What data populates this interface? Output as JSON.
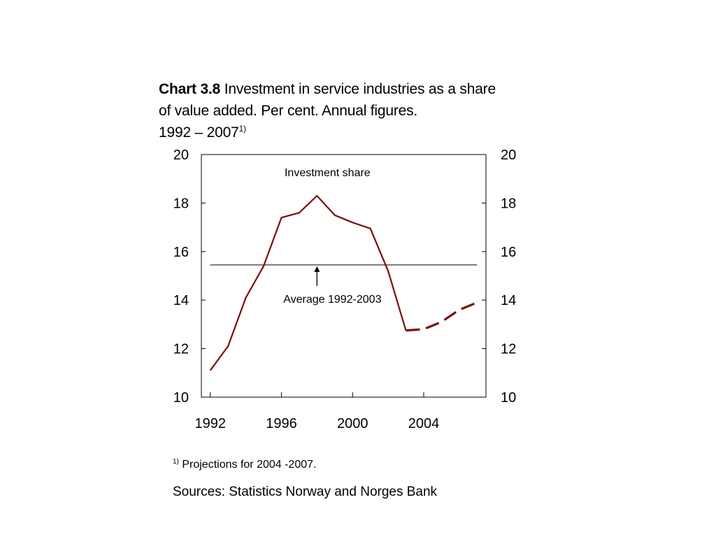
{
  "title": {
    "bold": "Chart 3.8",
    "line1": " Investment in service industries as a share",
    "line2": "of value added. Per cent. Annual figures.",
    "line3": "1992 – 2007",
    "sup": "1)"
  },
  "footnote": {
    "marker": "1)",
    "text": " Projections for 2004 -2007."
  },
  "sources": "Sources: Statistics Norway and Norges Bank",
  "colors": {
    "series": "#7b0c0c",
    "axis": "#000000",
    "average_line": "#000000"
  },
  "chart_data": {
    "type": "line",
    "ylim": [
      10,
      20
    ],
    "xlim": [
      1991.5,
      2007.5
    ],
    "y_ticks": [
      "10",
      "12",
      "14",
      "16",
      "18",
      "20"
    ],
    "y_ticks_right": [
      "10",
      "12",
      "14",
      "16",
      "18",
      "20"
    ],
    "x_ticks": [
      "1992",
      "1996",
      "2000",
      "2004"
    ],
    "grid": false,
    "series": [
      {
        "name": "Investment share",
        "x": [
          1992,
          1993,
          1994,
          1995,
          1996,
          1997,
          1998,
          1999,
          2000,
          2001,
          2002,
          2003,
          2004,
          2005,
          2006,
          2007
        ],
        "values": [
          11.1,
          12.1,
          14.1,
          15.4,
          17.4,
          17.6,
          18.3,
          17.5,
          17.2,
          16.95,
          15.2,
          12.75,
          12.8,
          13.1,
          13.6,
          13.9
        ],
        "projection_from": 2003
      }
    ],
    "average": {
      "label": "Average 1992-2003",
      "value": 15.45
    }
  }
}
